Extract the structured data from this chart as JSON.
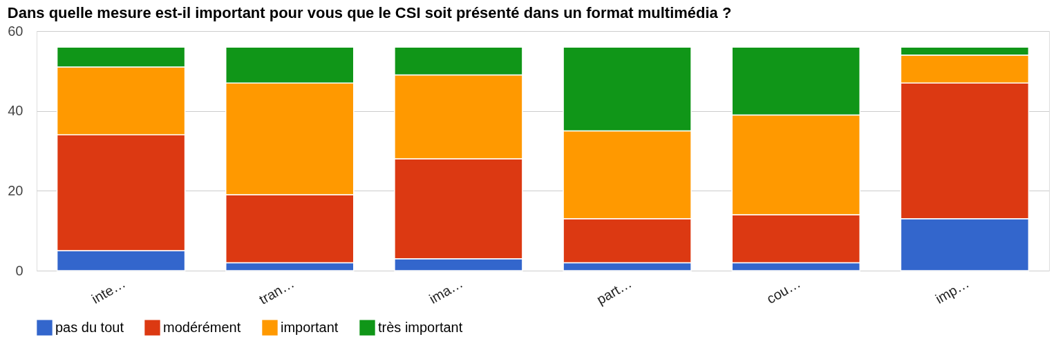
{
  "chart_data": {
    "type": "bar",
    "title": "Dans quelle mesure est-il important pour vous que le CSI soit présenté dans un format multimédia ?",
    "categories": [
      "inte…",
      "tran…",
      "ima…",
      "part…",
      "cou…",
      "imp…"
    ],
    "stacked": true,
    "ylim": [
      0,
      60
    ],
    "yticks": [
      0,
      20,
      40,
      60
    ],
    "grid": "y",
    "legend": "bottom",
    "series": [
      {
        "name": "pas du tout",
        "color": "#3366cc",
        "values": [
          5,
          2,
          3,
          2,
          2,
          13
        ]
      },
      {
        "name": "modérément",
        "color": "#dc3912",
        "values": [
          29,
          17,
          25,
          11,
          12,
          34
        ]
      },
      {
        "name": "important",
        "color": "#ff9900",
        "values": [
          17,
          28,
          21,
          22,
          25,
          7
        ]
      },
      {
        "name": "très important",
        "color": "#109618",
        "values": [
          5,
          9,
          7,
          21,
          17,
          2
        ]
      }
    ]
  }
}
